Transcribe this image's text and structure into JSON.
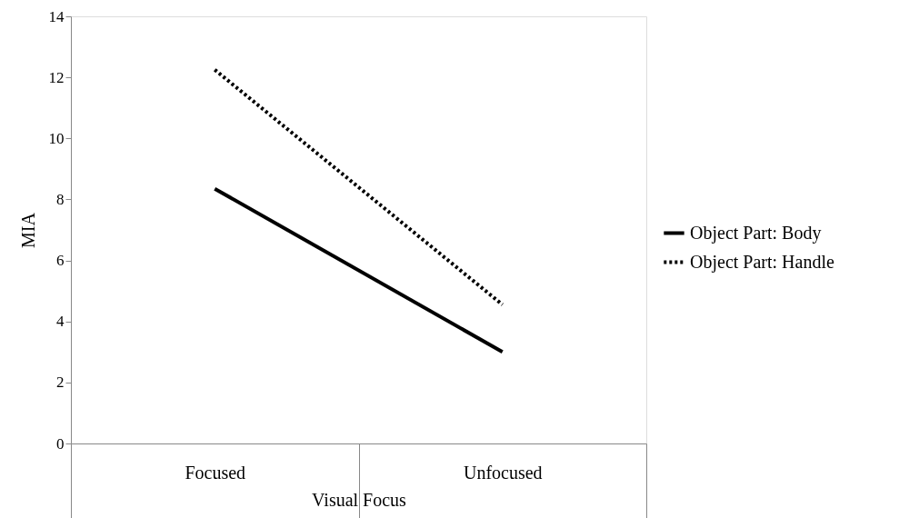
{
  "chart_data": {
    "type": "line",
    "xlabel": "Visual Focus",
    "ylabel": "MIA",
    "categories": [
      "Focused",
      "Unfocused"
    ],
    "ylim": [
      0,
      14
    ],
    "yticks": [
      0,
      2,
      4,
      6,
      8,
      10,
      12,
      14
    ],
    "grid": false,
    "legend": "right",
    "marker": "none",
    "series": [
      {
        "name": "Object Part: Body",
        "color": "#000000",
        "line_style": "solid",
        "values": [
          8.35,
          3.0
        ]
      },
      {
        "name": "Object Part: Handle",
        "color": "#000000",
        "line_style": "dotted",
        "values": [
          12.25,
          4.55
        ]
      }
    ]
  }
}
